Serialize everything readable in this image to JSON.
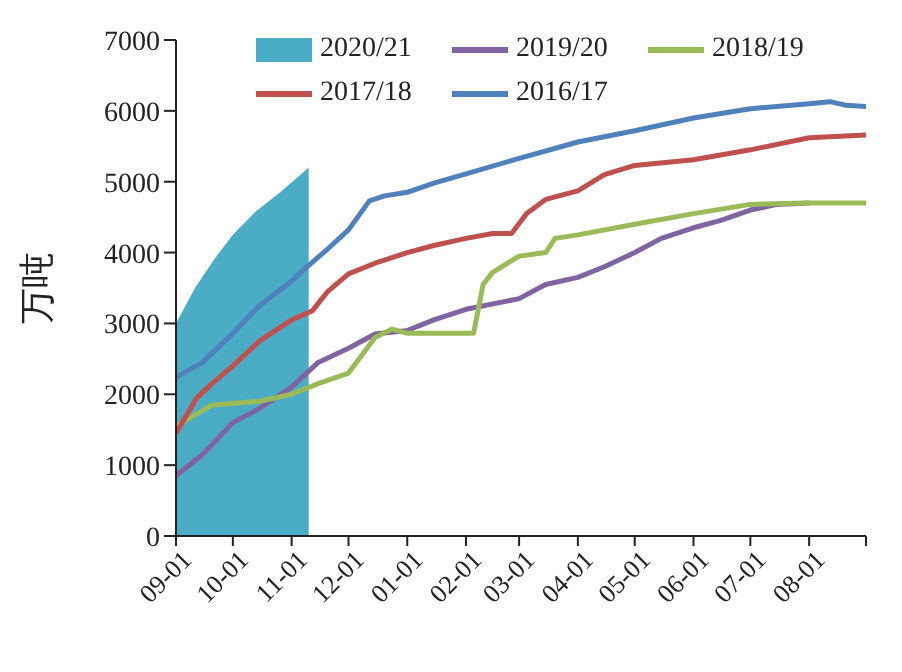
{
  "chart_data": {
    "type": "line",
    "ylabel": "万吨",
    "xlim": [
      "2020-09-01",
      "2021-08-31"
    ],
    "xticks": [
      {
        "value": "2020-09-01",
        "label": "09-01"
      },
      {
        "value": "2020-10-01",
        "label": "10-01"
      },
      {
        "value": "2020-11-01",
        "label": "11-01"
      },
      {
        "value": "2020-12-01",
        "label": "12-01"
      },
      {
        "value": "2021-01-01",
        "label": "01-01"
      },
      {
        "value": "2021-02-01",
        "label": "02-01"
      },
      {
        "value": "2021-03-01",
        "label": "03-01"
      },
      {
        "value": "2021-04-01",
        "label": "04-01"
      },
      {
        "value": "2021-05-01",
        "label": "05-01"
      },
      {
        "value": "2021-06-01",
        "label": "06-01"
      },
      {
        "value": "2021-07-01",
        "label": "07-01"
      },
      {
        "value": "2021-08-01",
        "label": "08-01"
      },
      {
        "value": "2021-08-31",
        "label": null
      }
    ],
    "ylim": [
      0,
      7000
    ],
    "yticks": [
      0,
      1000,
      2000,
      3000,
      4000,
      5000,
      6000,
      7000
    ],
    "grid": false,
    "legend": "top",
    "marker": "none",
    "line_style": "solid",
    "series": [
      {
        "name": "2020/21",
        "type": "area",
        "color": "#4bacc6",
        "x": [
          "2020-09-01",
          "2020-09-11",
          "2020-09-21",
          "2020-10-01",
          "2020-10-13",
          "2020-10-26",
          "2020-11-10"
        ],
        "values": [
          3000,
          3500,
          3900,
          4250,
          4580,
          4850,
          5200
        ]
      },
      {
        "name": "2019/20",
        "color": "#8064a2",
        "x": [
          "2020-09-01",
          "2020-09-15",
          "2020-10-01",
          "2020-10-15",
          "2020-11-01",
          "2020-11-15",
          "2020-12-01",
          "2020-12-15",
          "2021-01-01",
          "2021-01-15",
          "2021-02-01",
          "2021-03-01",
          "2021-03-15",
          "2021-04-01",
          "2021-04-15",
          "2021-05-01",
          "2021-05-15",
          "2021-06-01",
          "2021-06-15",
          "2021-07-01",
          "2021-07-15",
          "2021-08-01"
        ],
        "values": [
          850,
          1150,
          1600,
          1800,
          2100,
          2450,
          2650,
          2850,
          2900,
          3050,
          3200,
          3350,
          3550,
          3650,
          3800,
          4000,
          4200,
          4350,
          4450,
          4600,
          4680,
          4700
        ]
      },
      {
        "name": "2018/19",
        "color": "#9bbb59",
        "x": [
          "2020-09-01",
          "2020-09-20",
          "2020-10-15",
          "2020-11-01",
          "2020-11-15",
          "2020-12-01",
          "2020-12-15",
          "2020-12-24",
          "2021-01-01",
          "2021-02-05",
          "2021-02-10",
          "2021-02-15",
          "2021-03-01",
          "2021-03-15",
          "2021-03-20",
          "2021-04-01",
          "2021-05-01",
          "2021-06-01",
          "2021-07-01",
          "2021-08-01",
          "2021-08-31"
        ],
        "values": [
          1550,
          1850,
          1900,
          2000,
          2150,
          2300,
          2800,
          2920,
          2860,
          2860,
          3550,
          3720,
          3950,
          4000,
          4200,
          4250,
          4400,
          4550,
          4680,
          4700,
          4700
        ]
      },
      {
        "name": "2017/18",
        "color": "#c0504d",
        "x": [
          "2020-09-01",
          "2020-09-12",
          "2020-09-20",
          "2020-10-01",
          "2020-10-15",
          "2020-11-01",
          "2020-11-12",
          "2020-11-20",
          "2020-12-01",
          "2020-12-15",
          "2021-01-01",
          "2021-01-15",
          "2021-02-01",
          "2021-02-15",
          "2021-02-25",
          "2021-03-05",
          "2021-03-15",
          "2021-04-01",
          "2021-04-15",
          "2021-05-01",
          "2021-06-01",
          "2021-07-01",
          "2021-08-01",
          "2021-08-31"
        ],
        "values": [
          1450,
          1950,
          2150,
          2400,
          2750,
          3050,
          3180,
          3450,
          3700,
          3850,
          4000,
          4100,
          4200,
          4270,
          4270,
          4550,
          4750,
          4870,
          5100,
          5230,
          5310,
          5450,
          5620,
          5660
        ]
      },
      {
        "name": "2016/17",
        "color": "#4f81bd",
        "x": [
          "2020-09-01",
          "2020-09-15",
          "2020-10-01",
          "2020-10-15",
          "2020-11-01",
          "2020-11-10",
          "2020-11-20",
          "2020-12-01",
          "2020-12-12",
          "2020-12-20",
          "2021-01-01",
          "2021-01-15",
          "2021-02-01",
          "2021-03-01",
          "2021-04-01",
          "2021-05-01",
          "2021-06-01",
          "2021-07-01",
          "2021-08-01",
          "2021-08-12",
          "2021-08-20",
          "2021-08-31"
        ],
        "values": [
          2240,
          2450,
          2860,
          3250,
          3600,
          3820,
          4050,
          4320,
          4730,
          4800,
          4850,
          4980,
          5110,
          5330,
          5560,
          5720,
          5900,
          6030,
          6100,
          6130,
          6080,
          6060
        ]
      }
    ]
  }
}
